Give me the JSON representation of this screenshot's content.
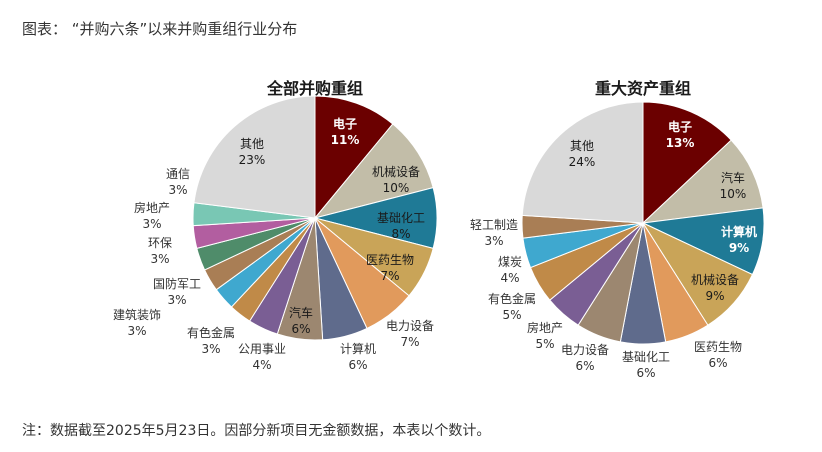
{
  "figure": {
    "title": "图表：  “并购六条”以来并购重组行业分布",
    "note": "注：数据截至2025年5月23日。因部分新项目无金额数据，本表以个数计。"
  },
  "chart_data": [
    {
      "type": "pie",
      "title": "全部并购重组",
      "unit": "%",
      "slices": [
        {
          "name": "电子",
          "value": 11,
          "color": "#6b0000"
        },
        {
          "name": "机械设备",
          "value": 10,
          "color": "#c2bda8"
        },
        {
          "name": "基础化工",
          "value": 8,
          "color": "#1f7a96"
        },
        {
          "name": "医药生物",
          "value": 7,
          "color": "#c9a458"
        },
        {
          "name": "电力设备",
          "value": 7,
          "color": "#e19a5c"
        },
        {
          "name": "计算机",
          "value": 6,
          "color": "#5f6b8c"
        },
        {
          "name": "汽车",
          "value": 6,
          "color": "#9c8770"
        },
        {
          "name": "公用事业",
          "value": 4,
          "color": "#7a5e94"
        },
        {
          "name": "有色金属",
          "value": 3,
          "color": "#c08a48"
        },
        {
          "name": "建筑装饰",
          "value": 3,
          "color": "#3fa8cf"
        },
        {
          "name": "国防军工",
          "value": 3,
          "color": "#a97e55"
        },
        {
          "name": "环保",
          "value": 3,
          "color": "#4f8c6a"
        },
        {
          "name": "房地产",
          "value": 3,
          "color": "#b25ea0"
        },
        {
          "name": "通信",
          "value": 3,
          "color": "#79c7b4"
        },
        {
          "name": "其他",
          "value": 23,
          "color": "#d9d9d9"
        }
      ]
    },
    {
      "type": "pie",
      "title": "重大资产重组",
      "unit": "%",
      "slices": [
        {
          "name": "电子",
          "value": 13,
          "color": "#6b0000"
        },
        {
          "name": "汽车",
          "value": 10,
          "color": "#c2bda8"
        },
        {
          "name": "计算机",
          "value": 9,
          "color": "#1f7a96"
        },
        {
          "name": "机械设备",
          "value": 9,
          "color": "#c9a458"
        },
        {
          "name": "医药生物",
          "value": 6,
          "color": "#e19a5c"
        },
        {
          "name": "基础化工",
          "value": 6,
          "color": "#5f6b8c"
        },
        {
          "name": "电力设备",
          "value": 6,
          "color": "#9c8770"
        },
        {
          "name": "房地产",
          "value": 5,
          "color": "#7a5e94"
        },
        {
          "name": "有色金属",
          "value": 5,
          "color": "#c08a48"
        },
        {
          "name": "煤炭",
          "value": 4,
          "color": "#3fa8cf"
        },
        {
          "name": "轻工制造",
          "value": 3,
          "color": "#a97e55"
        },
        {
          "name": "其他",
          "value": 24,
          "color": "#d9d9d9"
        }
      ]
    }
  ]
}
